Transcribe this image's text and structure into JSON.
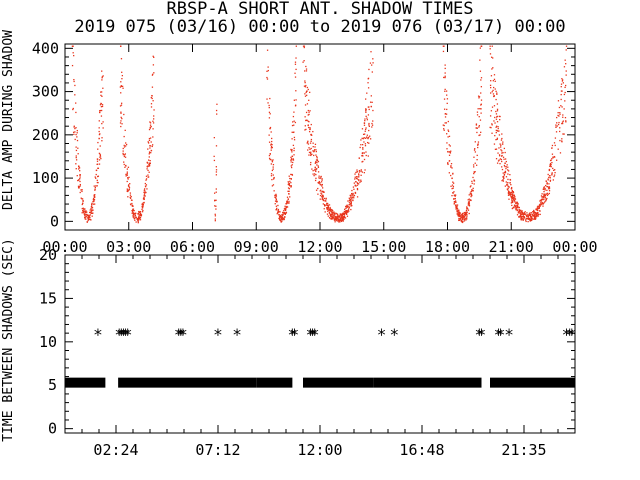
{
  "header": {
    "title": "RBSP-A SHORT ANT. SHADOW TIMES",
    "subtitle": "2019 075 (03/16) 00:00 to 2019 076 (03/17) 00:00"
  },
  "chart_data": [
    {
      "type": "scatter",
      "ylabel": "DELTA AMP DURING SHADOW",
      "xlim": [
        0,
        24
      ],
      "ylim": [
        -20,
        410
      ],
      "x_tick_labels": [
        "00:00",
        "03:00",
        "06:00",
        "09:00",
        "12:00",
        "15:00",
        "18:00",
        "21:00",
        "00:00"
      ],
      "y_tick_labels": [
        "0",
        "100",
        "200",
        "300",
        "400"
      ],
      "color": "#e8341c",
      "description_ranges": [
        {
          "x_start": 0.35,
          "x_end": 1.8
        },
        {
          "x_start": 2.6,
          "x_end": 4.2
        },
        {
          "x_start": 7.0,
          "x_end": 7.15
        },
        {
          "x_start": 9.5,
          "x_end": 10.9
        },
        {
          "x_start": 11.2,
          "x_end": 14.5
        },
        {
          "x_start": 17.8,
          "x_end": 19.6
        },
        {
          "x_start": 20.0,
          "x_end": 23.6
        }
      ]
    },
    {
      "type": "scatter",
      "ylabel": "TIME BETWEEN SHADOWS (SEC)",
      "xlim": [
        0,
        24
      ],
      "ylim": [
        -0.5,
        20
      ],
      "x_tick_labels": [
        "02:24",
        "07:12",
        "12:00",
        "16:48",
        "21:35"
      ],
      "y_tick_labels": [
        "0",
        "5",
        "10",
        "15",
        "20"
      ],
      "color": "#000000",
      "band_5s_ranges": [
        [
          0.0,
          1.9
        ],
        [
          2.5,
          4.8
        ],
        [
          4.8,
          9.0
        ],
        [
          9.0,
          10.7
        ],
        [
          11.2,
          14.5
        ],
        [
          14.5,
          19.6
        ],
        [
          20.0,
          24.0
        ]
      ],
      "points_11s_x": [
        1.55,
        2.55,
        2.65,
        2.75,
        2.85,
        2.95,
        5.35,
        5.45,
        5.55,
        7.2,
        8.1,
        10.7,
        10.8,
        11.55,
        11.65,
        11.75,
        14.9,
        15.5,
        19.5,
        19.6,
        20.4,
        20.5,
        20.9,
        23.6,
        23.75,
        23.85
      ]
    }
  ]
}
